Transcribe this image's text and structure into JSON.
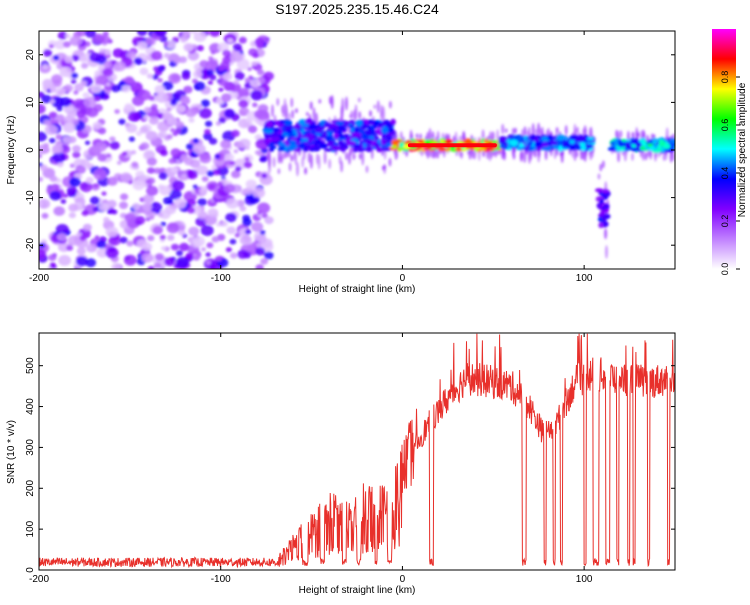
{
  "title": "S197.2025.235.15.46.C24",
  "chart_data": [
    {
      "type": "heatmap",
      "xlabel": "Height of straight line (km)",
      "ylabel": "Frequency (Hz)",
      "xlim": [
        -200,
        150
      ],
      "ylim": [
        -25,
        25
      ],
      "xticks": [
        -200,
        -100,
        0,
        100
      ],
      "yticks": [
        20,
        10,
        0,
        -10,
        -20
      ],
      "colorbar": {
        "label": "Normalized spectral amplitude",
        "range": [
          0,
          1
        ],
        "ticks": [
          "0.0",
          "0.2",
          "0.4",
          "0.6",
          "0.8"
        ],
        "tick_values": [
          0,
          0.2,
          0.4,
          0.6,
          0.8
        ],
        "colors": [
          "#ffffff",
          "#c080ff",
          "#8000ff",
          "#0000ff",
          "#00ffff",
          "#00ff00",
          "#ffff00",
          "#ff0000",
          "#ff00ff"
        ]
      },
      "noise_region": [
        -200,
        -73
      ],
      "features": [
        {
          "x0": -75,
          "x1": -5,
          "f_center": 3,
          "f_spread": 3,
          "amplitude": 0.45
        },
        {
          "x0": -5,
          "x1": 55,
          "f_center": 1,
          "f_spread": 0.8,
          "amplitude": 0.95
        },
        {
          "x0": 55,
          "x1": 105,
          "f_center": 1.5,
          "f_spread": 1.2,
          "amplitude": 0.5
        },
        {
          "x0": 108,
          "x1": 113,
          "f_center": -12,
          "f_spread": 4,
          "amplitude": 0.4
        },
        {
          "x0": 115,
          "x1": 150,
          "f_center": 1,
          "f_spread": 1,
          "amplitude": 0.6
        }
      ]
    },
    {
      "type": "line",
      "xlabel": "Height of straight line (km)",
      "ylabel": "SNR (10 * v/v)",
      "xlim": [
        -200,
        150
      ],
      "ylim": [
        0,
        580
      ],
      "xticks": [
        -200,
        -100,
        0,
        100
      ],
      "yticks": [
        0,
        100,
        200,
        300,
        400,
        500
      ],
      "color": "#e8302b",
      "envelope": [
        {
          "x": -200,
          "y": 15
        },
        {
          "x": -120,
          "y": 15
        },
        {
          "x": -70,
          "y": 18
        },
        {
          "x": -62,
          "y": 60
        },
        {
          "x": -50,
          "y": 110
        },
        {
          "x": -40,
          "y": 150
        },
        {
          "x": -30,
          "y": 130
        },
        {
          "x": -20,
          "y": 170
        },
        {
          "x": -12,
          "y": 160
        },
        {
          "x": -5,
          "y": 200
        },
        {
          "x": 5,
          "y": 290
        },
        {
          "x": 15,
          "y": 360
        },
        {
          "x": 25,
          "y": 420
        },
        {
          "x": 35,
          "y": 470
        },
        {
          "x": 50,
          "y": 460
        },
        {
          "x": 60,
          "y": 450
        },
        {
          "x": 70,
          "y": 400
        },
        {
          "x": 78,
          "y": 330
        },
        {
          "x": 85,
          "y": 360
        },
        {
          "x": 95,
          "y": 460
        },
        {
          "x": 105,
          "y": 480
        },
        {
          "x": 120,
          "y": 470
        },
        {
          "x": 135,
          "y": 460
        },
        {
          "x": 150,
          "y": 470
        }
      ],
      "dropouts": [
        [
          -55,
          -52
        ],
        [
          -45,
          -43
        ],
        [
          -33,
          -31
        ],
        [
          -25,
          -23
        ],
        [
          -15,
          -14
        ],
        [
          -8,
          -6
        ],
        [
          15,
          17
        ],
        [
          66,
          68
        ],
        [
          78,
          79
        ],
        [
          83,
          84
        ],
        [
          87,
          88
        ],
        [
          100,
          101
        ],
        [
          105,
          108
        ],
        [
          112,
          114
        ],
        [
          118,
          119
        ],
        [
          124,
          125
        ],
        [
          127,
          128
        ],
        [
          135,
          136
        ],
        [
          146,
          147
        ]
      ]
    }
  ]
}
